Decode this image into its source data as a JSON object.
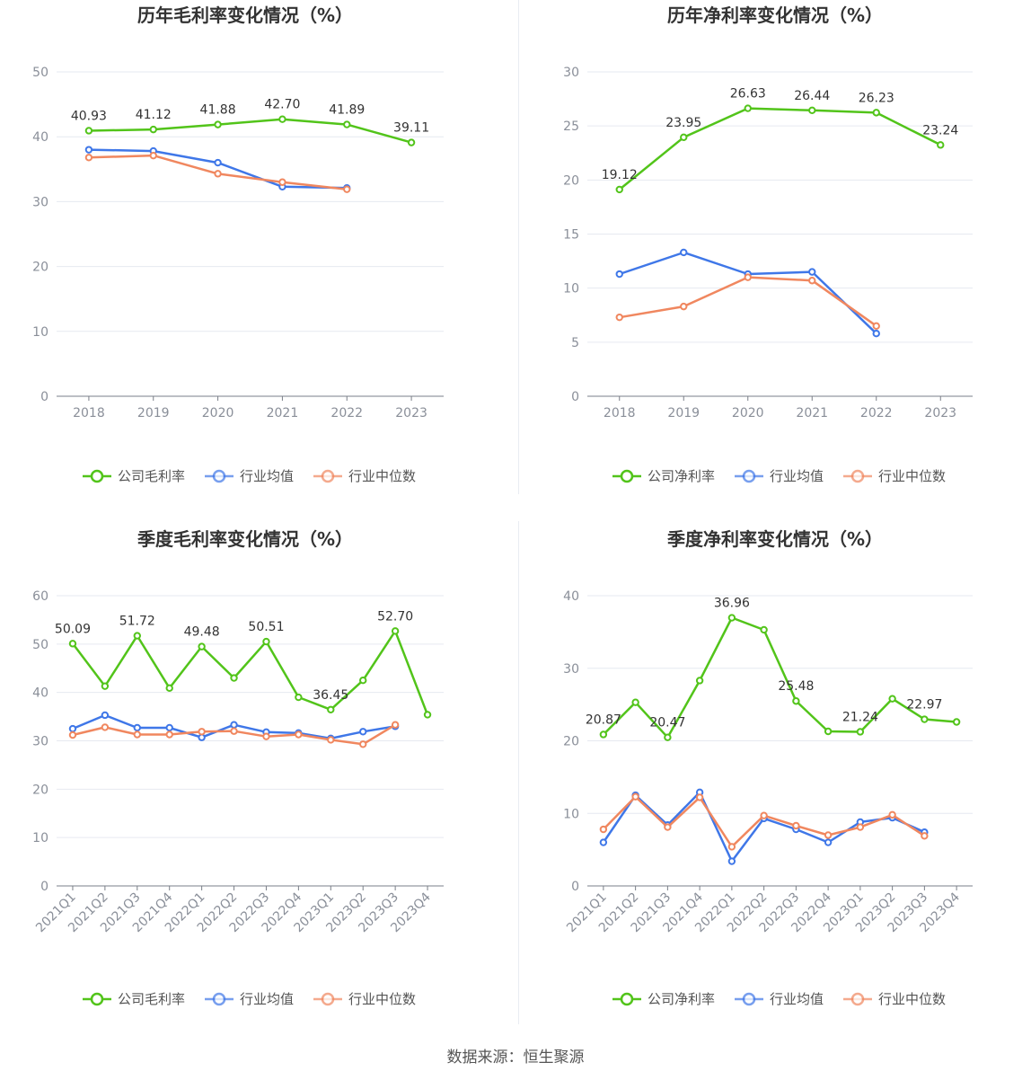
{
  "source_text": "数据来源：恒生聚源",
  "colors": {
    "company": "#52c41a",
    "avg": "#3f77e8",
    "median": "#f0875f",
    "grid": "#e6e9f0",
    "axis": "#7a7f88"
  },
  "legend_labels": {
    "avg": "行业均值",
    "median": "行业中位数"
  },
  "chart_data": [
    {
      "type": "line",
      "title": "历年毛利率变化情况（%）",
      "categories": [
        "2018",
        "2019",
        "2020",
        "2021",
        "2022",
        "2023"
      ],
      "ylim": [
        0,
        50
      ],
      "yticks": [
        0,
        10,
        20,
        30,
        40,
        50
      ],
      "grid": true,
      "legend_position": "bottom",
      "series": [
        {
          "name": "公司毛利率",
          "key": "company",
          "values": [
            40.93,
            41.12,
            41.88,
            42.7,
            41.89,
            39.11
          ],
          "labels": [
            "40.93",
            "41.12",
            "41.88",
            "42.70",
            "41.89",
            "39.11"
          ]
        },
        {
          "name": "行业均值",
          "key": "avg",
          "values": [
            38.0,
            37.8,
            36.0,
            32.3,
            32.1,
            null
          ]
        },
        {
          "name": "行业中位数",
          "key": "median",
          "values": [
            36.8,
            37.1,
            34.3,
            33.0,
            31.9,
            null
          ]
        }
      ]
    },
    {
      "type": "line",
      "title": "历年净利率变化情况（%）",
      "categories": [
        "2018",
        "2019",
        "2020",
        "2021",
        "2022",
        "2023"
      ],
      "ylim": [
        0,
        30
      ],
      "yticks": [
        0,
        5,
        10,
        15,
        20,
        25,
        30
      ],
      "grid": true,
      "legend_position": "bottom",
      "series": [
        {
          "name": "公司净利率",
          "key": "company",
          "values": [
            19.12,
            23.95,
            26.63,
            26.44,
            26.23,
            23.24
          ],
          "labels": [
            "19.12",
            "23.95",
            "26.63",
            "26.44",
            "26.23",
            "23.24"
          ]
        },
        {
          "name": "行业均值",
          "key": "avg",
          "values": [
            11.3,
            13.3,
            11.3,
            11.5,
            5.8,
            null
          ]
        },
        {
          "name": "行业中位数",
          "key": "median",
          "values": [
            7.3,
            8.3,
            11.0,
            10.7,
            6.5,
            null
          ]
        }
      ]
    },
    {
      "type": "line",
      "title": "季度毛利率变化情况（%）",
      "categories": [
        "2021Q1",
        "2021Q2",
        "2021Q3",
        "2021Q4",
        "2022Q1",
        "2022Q2",
        "2022Q3",
        "2022Q4",
        "2023Q1",
        "2023Q2",
        "2023Q3",
        "2023Q4"
      ],
      "ylim": [
        0,
        60
      ],
      "yticks": [
        0,
        10,
        20,
        30,
        40,
        50,
        60
      ],
      "rotate_xticks": true,
      "grid": true,
      "legend_position": "bottom",
      "series": [
        {
          "name": "公司毛利率",
          "key": "company",
          "values": [
            50.09,
            41.3,
            51.72,
            40.9,
            49.48,
            43.0,
            50.51,
            39.0,
            36.45,
            42.5,
            52.7,
            35.4
          ],
          "labels": [
            "50.09",
            "",
            "51.72",
            "",
            "49.48",
            "",
            "50.51",
            "",
            "36.45",
            "",
            "52.70",
            ""
          ]
        },
        {
          "name": "行业均值",
          "key": "avg",
          "values": [
            32.5,
            35.3,
            32.7,
            32.7,
            30.7,
            33.3,
            31.8,
            31.6,
            30.5,
            31.9,
            33.0,
            null
          ]
        },
        {
          "name": "行业中位数",
          "key": "median",
          "values": [
            31.2,
            32.8,
            31.3,
            31.3,
            31.9,
            32.0,
            30.9,
            31.3,
            30.2,
            29.3,
            33.3,
            null
          ]
        }
      ]
    },
    {
      "type": "line",
      "title": "季度净利率变化情况（%）",
      "categories": [
        "2021Q1",
        "2021Q2",
        "2021Q3",
        "2021Q4",
        "2022Q1",
        "2022Q2",
        "2022Q3",
        "2022Q4",
        "2023Q1",
        "2023Q2",
        "2023Q3",
        "2023Q4"
      ],
      "ylim": [
        0,
        40
      ],
      "yticks": [
        0,
        10,
        20,
        30,
        40
      ],
      "rotate_xticks": true,
      "grid": true,
      "legend_position": "bottom",
      "series": [
        {
          "name": "公司净利率",
          "key": "company",
          "values": [
            20.87,
            25.3,
            20.47,
            28.3,
            36.96,
            35.3,
            25.48,
            21.3,
            21.24,
            25.8,
            22.97,
            22.6
          ],
          "labels": [
            "20.87",
            "",
            "20.47",
            "",
            "36.96",
            "",
            "25.48",
            "",
            "21.24",
            "",
            "22.97",
            ""
          ]
        },
        {
          "name": "行业均值",
          "key": "avg",
          "values": [
            6.0,
            12.5,
            8.4,
            12.9,
            3.4,
            9.3,
            7.8,
            6.0,
            8.8,
            9.4,
            7.4,
            null
          ]
        },
        {
          "name": "行业中位数",
          "key": "median",
          "values": [
            7.8,
            12.3,
            8.1,
            12.2,
            5.4,
            9.7,
            8.3,
            7.0,
            8.1,
            9.8,
            6.9,
            null
          ]
        }
      ]
    }
  ]
}
